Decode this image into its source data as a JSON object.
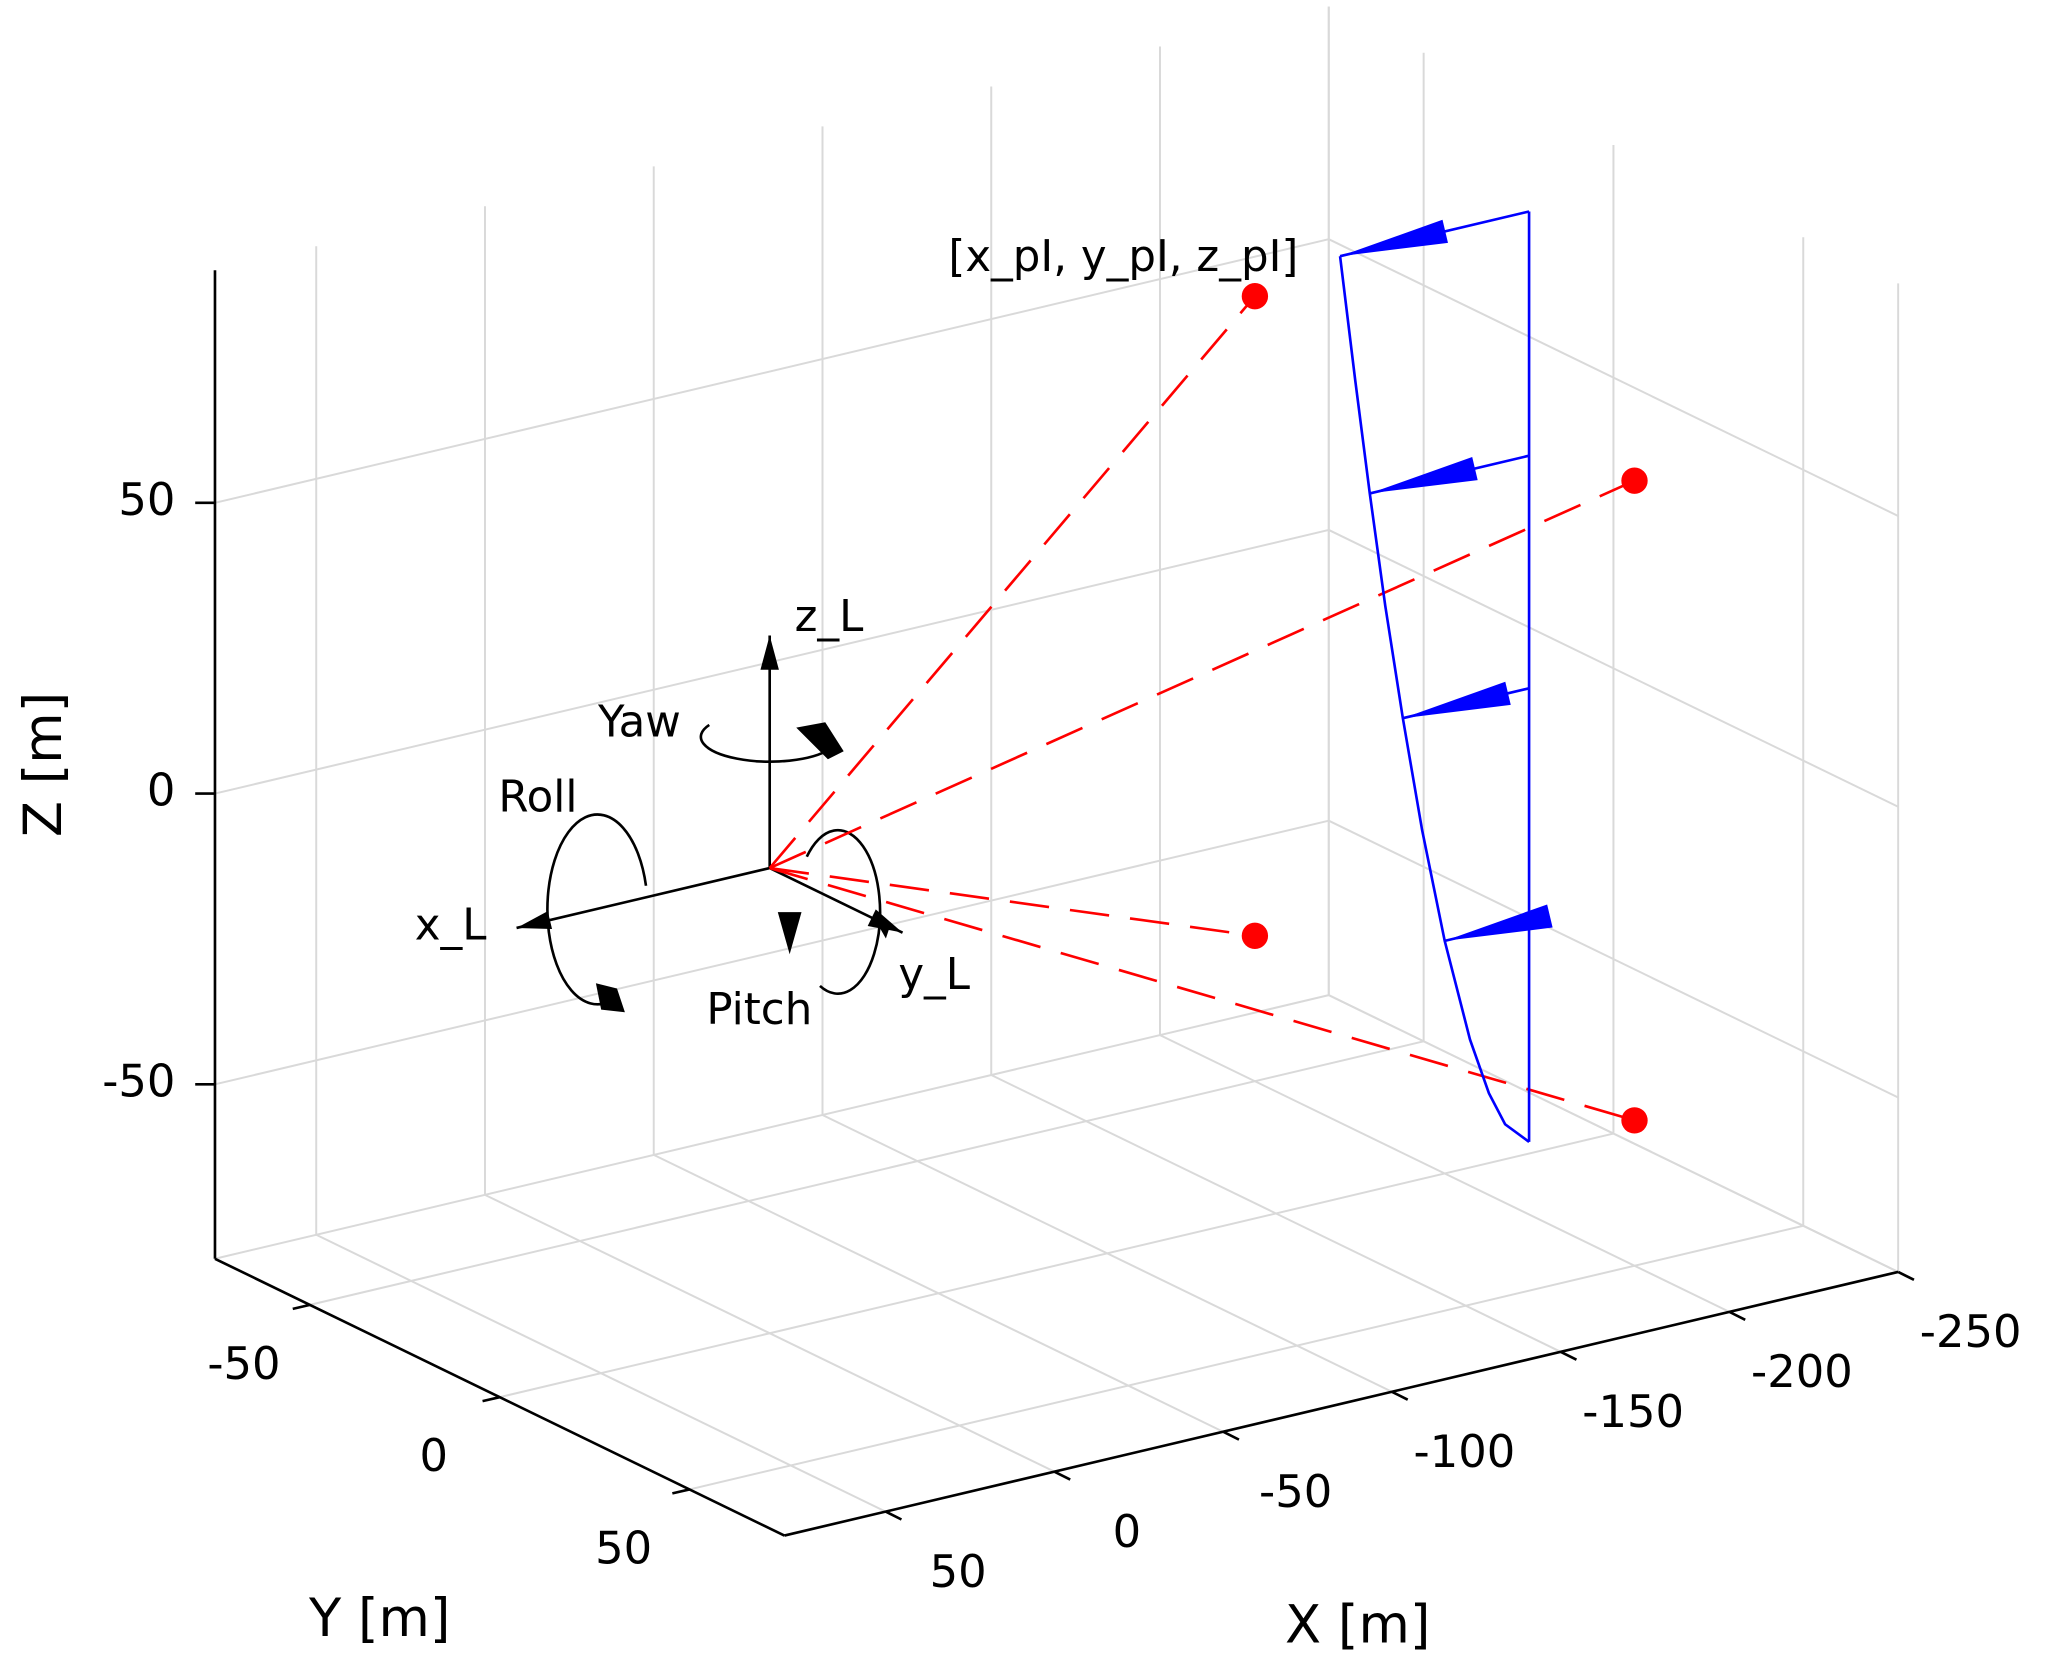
{
  "chart_data": {
    "type": "scatter3d",
    "xlabel": "X [m]",
    "ylabel": "Y [m]",
    "zlabel": "Z [m]",
    "xlim": [
      -250,
      80
    ],
    "ylim": [
      -75,
      75
    ],
    "zlim": [
      -80,
      90
    ],
    "xticks": [
      -250,
      -200,
      -150,
      -100,
      -50,
      0,
      50
    ],
    "yticks": [
      -50,
      0,
      50
    ],
    "zticks": [
      -50,
      0,
      50
    ],
    "grid": true,
    "points": {
      "color": "#ff0000",
      "label": "[x_pI, y_pI, z_pI]",
      "x": [
        -200,
        -200,
        -200,
        -200
      ],
      "y": [
        -50,
        50,
        -50,
        50
      ],
      "z": [
        55,
        55,
        -55,
        -55
      ]
    },
    "frame": {
      "origin": [
        0,
        0,
        0
      ],
      "x_label": "x_L",
      "y_label": "y_L",
      "z_label": "z_L",
      "roll": "Roll",
      "pitch": "Pitch",
      "yaw": "Yaw"
    },
    "profile": {
      "color": "#0000ff",
      "x": -225,
      "y": 0,
      "z": [
        -78,
        -74,
        -68,
        -58,
        -40,
        -20,
        0,
        20,
        40,
        60,
        82
      ],
      "u": [
        0,
        7.1,
        11.9,
        17.5,
        25.0,
        31.7,
        37.4,
        42.6,
        47.2,
        51.5,
        56
      ]
    },
    "arrows": {
      "z": [
        82,
        40,
        0,
        -40
      ],
      "u": [
        56,
        47.2,
        37.4,
        25.0
      ]
    }
  }
}
